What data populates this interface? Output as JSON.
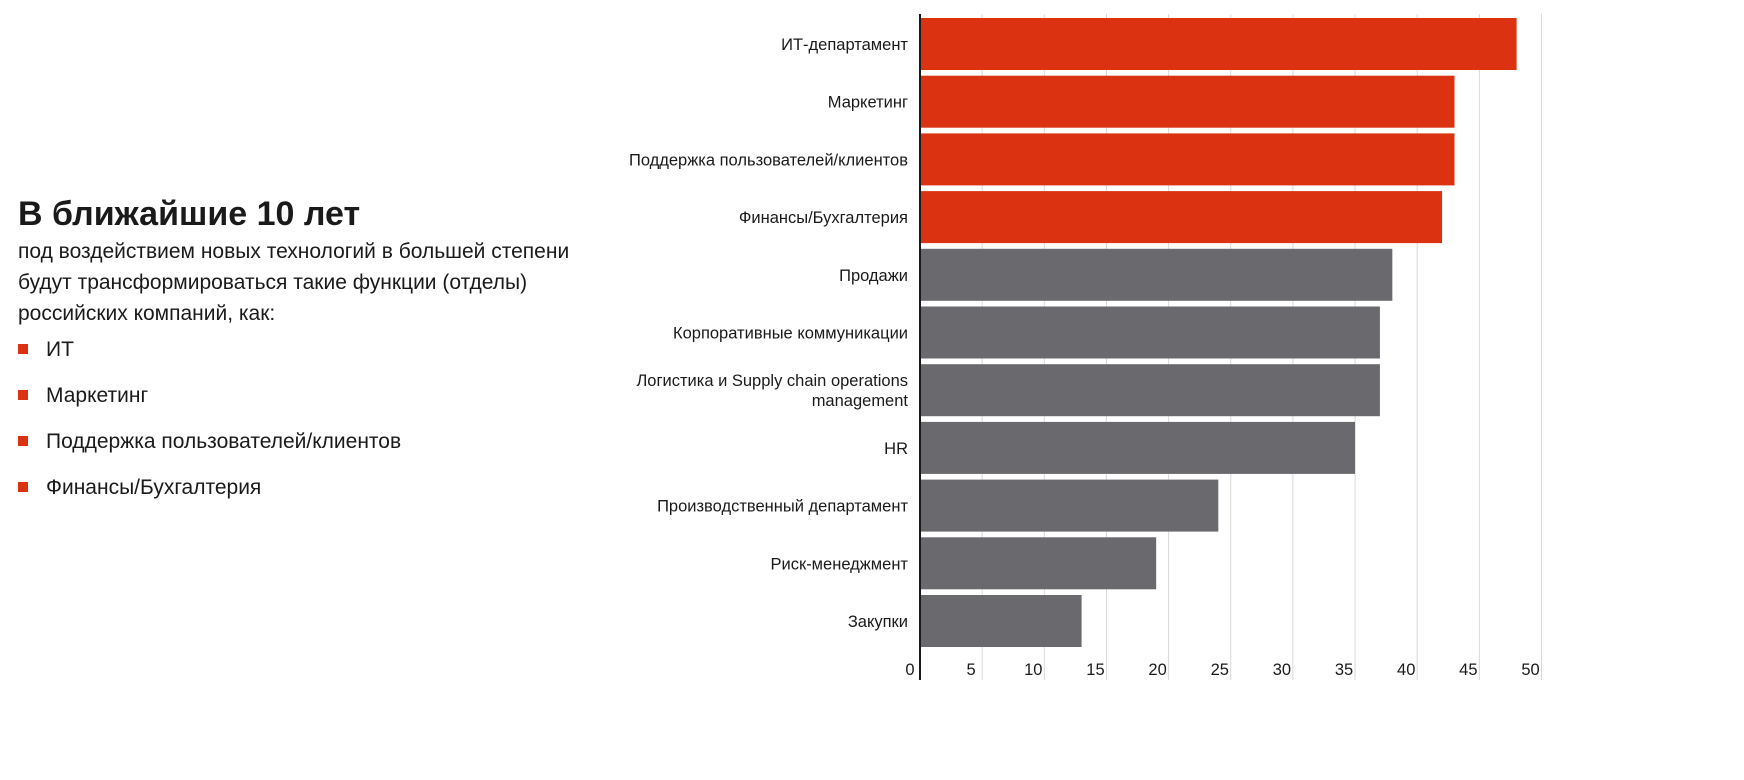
{
  "colors": {
    "highlight": "#db3212",
    "neutral": "#6a696e",
    "grid": "#d9d9d9",
    "axis": "#1a1a1a"
  },
  "summary": {
    "title": "В ближайшие 10 лет",
    "description": "под воздействием новых технологий в большей степени будут трансформироваться такие функции (отделы) российских компаний, как:",
    "items": [
      {
        "label": "ИТ"
      },
      {
        "label": "Маркетинг"
      },
      {
        "label": "Поддержка пользователей/клиентов"
      },
      {
        "label": "Финансы/Бухгалтерия"
      }
    ]
  },
  "chart_data": {
    "type": "bar",
    "orientation": "horizontal",
    "categories": [
      "ИТ-департамент",
      "Маркетинг",
      "Поддержка пользователей/клиентов",
      "Финансы/Бухгалтерия",
      "Продажи",
      "Корпоративные коммуникации",
      "Логистика и Supply chain operations management",
      "HR",
      "Производственный департамент",
      "Риск-менеджмент",
      "Закупки"
    ],
    "values": [
      48,
      43,
      43,
      42,
      38,
      37,
      37,
      35,
      24,
      19,
      13
    ],
    "highlighted": [
      true,
      true,
      true,
      true,
      false,
      false,
      false,
      false,
      false,
      false,
      false
    ],
    "xlim": [
      0,
      50
    ],
    "xticks": [
      0,
      5,
      10,
      15,
      20,
      25,
      30,
      35,
      40,
      45,
      50
    ],
    "grid": true,
    "title": "",
    "xlabel": "",
    "ylabel": ""
  }
}
